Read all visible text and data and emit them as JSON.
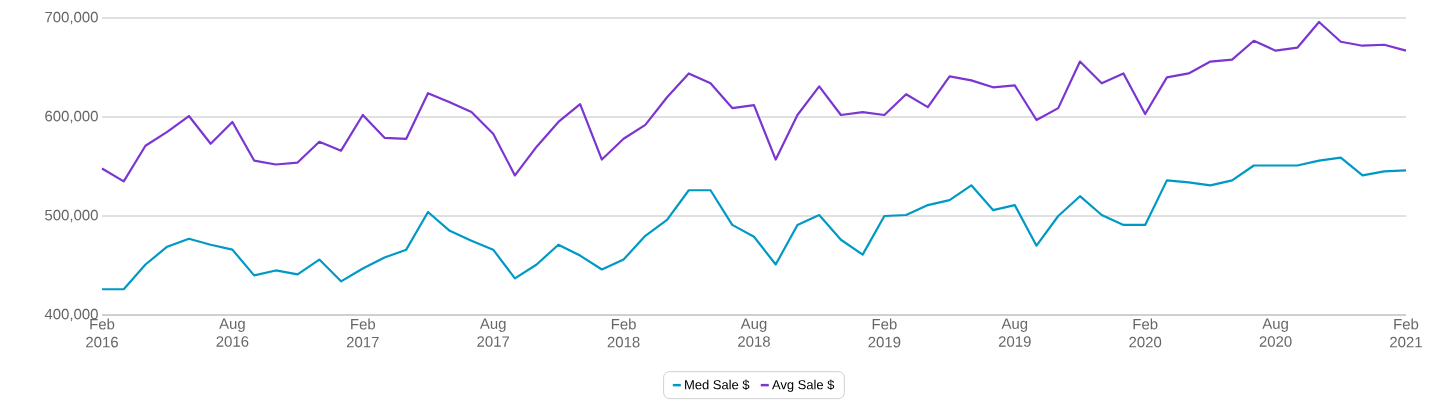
{
  "chart_data": {
    "type": "line",
    "x": [
      "2016-02",
      "2016-03",
      "2016-04",
      "2016-05",
      "2016-06",
      "2016-07",
      "2016-08",
      "2016-09",
      "2016-10",
      "2016-11",
      "2016-12",
      "2017-01",
      "2017-02",
      "2017-03",
      "2017-04",
      "2017-05",
      "2017-06",
      "2017-07",
      "2017-08",
      "2017-09",
      "2017-10",
      "2017-11",
      "2017-12",
      "2018-01",
      "2018-02",
      "2018-03",
      "2018-04",
      "2018-05",
      "2018-06",
      "2018-07",
      "2018-08",
      "2018-09",
      "2018-10",
      "2018-11",
      "2018-12",
      "2019-01",
      "2019-02",
      "2019-03",
      "2019-04",
      "2019-05",
      "2019-06",
      "2019-07",
      "2019-08",
      "2019-09",
      "2019-10",
      "2019-11",
      "2019-12",
      "2020-01",
      "2020-02",
      "2020-03",
      "2020-04",
      "2020-05",
      "2020-06",
      "2020-07",
      "2020-08",
      "2020-09",
      "2020-10",
      "2020-11",
      "2020-12",
      "2021-01",
      "2021-02"
    ],
    "series": [
      {
        "name": "Med Sale $",
        "color": "#0099c6",
        "values": [
          426000,
          426000,
          451000,
          469000,
          477000,
          471000,
          466000,
          440000,
          445000,
          441000,
          456000,
          434000,
          447000,
          458000,
          466000,
          504000,
          485000,
          475000,
          466000,
          437000,
          451000,
          471000,
          460000,
          446000,
          456000,
          480000,
          496000,
          526000,
          526000,
          491000,
          479000,
          451000,
          491000,
          501000,
          476000,
          461000,
          500000,
          501000,
          511000,
          516000,
          531000,
          506000,
          511000,
          470000,
          500000,
          520000,
          501000,
          491000,
          491000,
          536000,
          534000,
          531000,
          536000,
          551000,
          551000,
          551000,
          556000,
          559000,
          541000,
          545000,
          546000
        ]
      },
      {
        "name": "Avg Sale $",
        "color": "#7b35d0",
        "values": [
          548000,
          535000,
          571000,
          585000,
          601000,
          573000,
          595000,
          556000,
          552000,
          554000,
          575000,
          566000,
          602000,
          579000,
          578000,
          624000,
          615000,
          605000,
          583000,
          541000,
          570000,
          595000,
          613000,
          557000,
          578000,
          592000,
          620000,
          644000,
          634000,
          609000,
          612000,
          557000,
          602000,
          631000,
          602000,
          605000,
          602000,
          623000,
          610000,
          641000,
          637000,
          630000,
          632000,
          597000,
          609000,
          656000,
          634000,
          644000,
          603000,
          640000,
          644000,
          656000,
          658000,
          677000,
          667000,
          670000,
          696000,
          676000,
          672000,
          673000,
          667000
        ]
      }
    ],
    "xlim": [
      "2016-02",
      "2021-02"
    ],
    "xticks": [
      {
        "value": "2016-02",
        "label": "Feb 2016"
      },
      {
        "value": "2016-08",
        "label": "Aug 2016"
      },
      {
        "value": "2017-02",
        "label": "Feb 2017"
      },
      {
        "value": "2017-08",
        "label": "Aug 2017"
      },
      {
        "value": "2018-02",
        "label": "Feb 2018"
      },
      {
        "value": "2018-08",
        "label": "Aug 2018"
      },
      {
        "value": "2019-02",
        "label": "Feb 2019"
      },
      {
        "value": "2019-08",
        "label": "Aug 2019"
      },
      {
        "value": "2020-02",
        "label": "Feb 2020"
      },
      {
        "value": "2020-08",
        "label": "Aug 2020"
      },
      {
        "value": "2021-02",
        "label": "Feb 2021"
      }
    ],
    "ylim": [
      400000,
      700000
    ],
    "yticks": [
      {
        "value": 400000,
        "label": "400,000"
      },
      {
        "value": 500000,
        "label": "500,000"
      },
      {
        "value": 600000,
        "label": "600,000"
      },
      {
        "value": 700000,
        "label": "700,000"
      }
    ],
    "grid": "y",
    "legend": "bottom",
    "marker": "none",
    "line_style": "solid"
  }
}
